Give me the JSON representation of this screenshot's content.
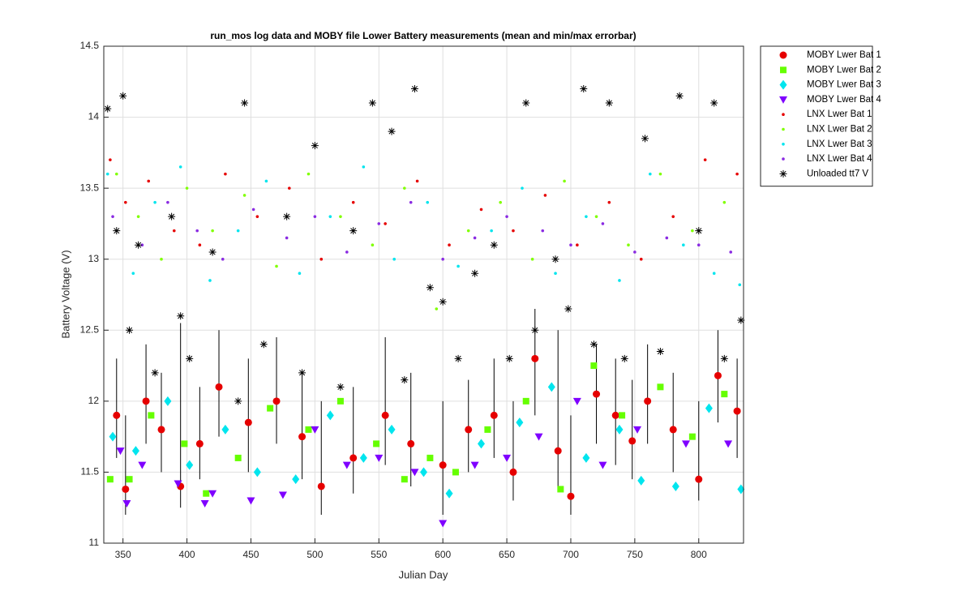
{
  "chart_data": {
    "type": "scatter",
    "title": "run_mos log data and MOBY file Lower Battery measurements (mean and min/max errorbar)",
    "x_label": "Julian Day",
    "y_label": "Battery Voltage (V)",
    "xlim": [
      335,
      835
    ],
    "ylim": [
      11,
      14.5
    ],
    "xticks": [
      350,
      400,
      450,
      500,
      550,
      600,
      650,
      700,
      750,
      800
    ],
    "yticks": [
      11,
      11.5,
      12,
      12.5,
      13,
      13.5,
      14,
      14.5
    ],
    "grid": true,
    "legend": "outside-top-right",
    "errorbar_color": "#000000",
    "series": [
      {
        "name": "MOBY Lwer Bat 1",
        "color": "#e60000",
        "marker": "o",
        "x": [
          345,
          352,
          368,
          380,
          395,
          410,
          425,
          448,
          470,
          490,
          505,
          530,
          555,
          575,
          600,
          620,
          640,
          655,
          672,
          690,
          700,
          720,
          735,
          748,
          760,
          780,
          800,
          815,
          830
        ],
        "y": [
          11.9,
          11.38,
          12.0,
          11.8,
          11.4,
          11.7,
          12.1,
          11.85,
          12.0,
          11.75,
          11.4,
          11.6,
          11.9,
          11.7,
          11.55,
          11.8,
          11.9,
          11.5,
          12.3,
          11.65,
          11.33,
          12.05,
          11.9,
          11.72,
          12.0,
          11.8,
          11.45,
          12.18,
          11.93
        ],
        "ymin": [
          11.6,
          11.2,
          11.7,
          11.5,
          11.25,
          11.45,
          11.75,
          11.5,
          11.7,
          11.45,
          11.2,
          11.35,
          11.55,
          11.4,
          11.2,
          11.5,
          11.6,
          11.3,
          11.9,
          11.4,
          11.2,
          11.7,
          11.55,
          11.45,
          11.7,
          11.5,
          11.3,
          11.85,
          11.6
        ],
        "ymax": [
          12.3,
          11.9,
          12.4,
          12.2,
          12.55,
          12.1,
          12.5,
          12.3,
          12.45,
          12.2,
          12.0,
          12.1,
          12.45,
          12.2,
          12.0,
          12.15,
          12.3,
          12.0,
          12.65,
          12.5,
          11.9,
          12.4,
          12.3,
          12.15,
          12.4,
          12.2,
          12.0,
          12.5,
          12.3
        ]
      },
      {
        "name": "MOBY Lwer Bat 2",
        "color": "#66ff00",
        "marker": "s",
        "x": [
          340,
          355,
          372,
          398,
          415,
          440,
          465,
          495,
          520,
          548,
          570,
          590,
          610,
          635,
          665,
          692,
          718,
          740,
          770,
          795,
          820
        ],
        "y": [
          11.45,
          11.45,
          11.9,
          11.7,
          11.35,
          11.6,
          11.95,
          11.8,
          12.0,
          11.7,
          11.45,
          11.6,
          11.5,
          11.8,
          12.0,
          11.38,
          12.25,
          11.9,
          12.1,
          11.75,
          12.05
        ]
      },
      {
        "name": "MOBY Lwer Bat 3",
        "color": "#00e5ee",
        "marker": "d",
        "x": [
          342,
          360,
          385,
          402,
          430,
          455,
          485,
          512,
          538,
          560,
          585,
          605,
          630,
          660,
          685,
          712,
          738,
          755,
          782,
          808,
          833
        ],
        "y": [
          11.75,
          11.65,
          12.0,
          11.55,
          11.8,
          11.5,
          11.45,
          11.9,
          11.6,
          11.8,
          11.5,
          11.35,
          11.7,
          11.85,
          12.1,
          11.6,
          11.8,
          11.44,
          11.4,
          11.95,
          11.38
        ]
      },
      {
        "name": "MOBY Lwer Bat 4",
        "color": "#7f00ff",
        "marker": "v",
        "x": [
          348,
          353,
          365,
          393,
          414,
          420,
          450,
          475,
          500,
          525,
          550,
          578,
          600,
          625,
          650,
          675,
          705,
          725,
          752,
          790,
          823
        ],
        "y": [
          11.65,
          11.28,
          11.55,
          11.42,
          11.28,
          11.35,
          11.3,
          11.34,
          11.8,
          11.55,
          11.6,
          11.5,
          11.14,
          11.55,
          11.6,
          11.75,
          12.0,
          11.55,
          11.8,
          11.7,
          11.7
        ]
      },
      {
        "name": "LNX Lwer Bat 1",
        "color": "#e60000",
        "marker": ".",
        "x": [
          340,
          352,
          370,
          390,
          410,
          430,
          455,
          480,
          505,
          530,
          555,
          580,
          605,
          630,
          655,
          680,
          705,
          730,
          755,
          780,
          805,
          830
        ],
        "y": [
          13.7,
          13.4,
          13.55,
          13.2,
          13.1,
          13.6,
          13.3,
          13.5,
          13.0,
          13.4,
          13.25,
          13.55,
          13.1,
          13.35,
          13.2,
          13.45,
          13.1,
          13.4,
          13.0,
          13.3,
          13.7,
          13.6
        ]
      },
      {
        "name": "LNX Lwer Bat 2",
        "color": "#80ff00",
        "marker": ".",
        "x": [
          345,
          362,
          380,
          400,
          420,
          445,
          470,
          495,
          520,
          545,
          570,
          595,
          620,
          645,
          670,
          695,
          720,
          745,
          770,
          795,
          820
        ],
        "y": [
          13.6,
          13.3,
          13.0,
          13.5,
          13.2,
          13.45,
          12.95,
          13.6,
          13.3,
          13.1,
          13.5,
          12.65,
          13.2,
          13.4,
          13.0,
          13.55,
          13.3,
          13.1,
          13.6,
          13.2,
          13.4
        ]
      },
      {
        "name": "LNX Lwer Bat 3",
        "color": "#00e5ee",
        "marker": ".",
        "x": [
          338,
          358,
          375,
          395,
          418,
          440,
          462,
          488,
          512,
          538,
          562,
          588,
          612,
          638,
          662,
          688,
          712,
          738,
          762,
          788,
          812,
          832
        ],
        "y": [
          13.6,
          12.9,
          13.4,
          13.65,
          12.85,
          13.2,
          13.55,
          12.9,
          13.3,
          13.65,
          13.0,
          13.4,
          12.95,
          13.2,
          13.5,
          12.9,
          13.3,
          12.85,
          13.6,
          13.1,
          12.9,
          12.82
        ]
      },
      {
        "name": "LNX Lwer Bat 4",
        "color": "#8a2be2",
        "marker": ".",
        "x": [
          342,
          365,
          385,
          408,
          428,
          452,
          478,
          500,
          525,
          550,
          575,
          600,
          625,
          650,
          678,
          700,
          725,
          750,
          775,
          800,
          825
        ],
        "y": [
          13.3,
          13.1,
          13.4,
          13.2,
          13.0,
          13.35,
          13.15,
          13.3,
          13.05,
          13.25,
          13.4,
          13.0,
          13.15,
          13.3,
          13.2,
          13.1,
          13.25,
          13.05,
          13.15,
          13.1,
          13.05
        ]
      },
      {
        "name": "Unloaded tt7 V",
        "color": "#000000",
        "marker": "*",
        "x": [
          338,
          345,
          350,
          355,
          362,
          375,
          388,
          395,
          402,
          420,
          440,
          445,
          460,
          478,
          490,
          500,
          520,
          530,
          545,
          560,
          570,
          578,
          590,
          600,
          612,
          625,
          640,
          652,
          665,
          672,
          688,
          698,
          710,
          718,
          730,
          742,
          758,
          770,
          785,
          800,
          812,
          820,
          833
        ],
        "y": [
          14.06,
          13.2,
          14.15,
          12.5,
          13.1,
          12.2,
          13.3,
          12.6,
          12.3,
          13.05,
          12.0,
          14.1,
          12.4,
          13.3,
          12.2,
          13.8,
          12.1,
          13.2,
          14.1,
          13.9,
          12.15,
          14.2,
          12.8,
          12.7,
          12.3,
          12.9,
          13.1,
          12.3,
          14.1,
          12.5,
          13.0,
          12.65,
          14.2,
          12.4,
          14.1,
          12.3,
          13.85,
          12.35,
          14.15,
          13.2,
          14.1,
          12.3,
          12.57
        ]
      }
    ]
  }
}
